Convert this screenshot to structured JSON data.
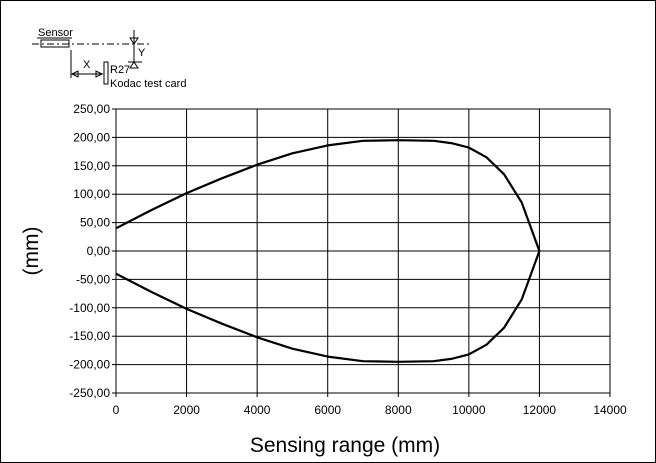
{
  "diagram": {
    "sensor_label": "Sensor",
    "x_label": "X",
    "y_label": "Y",
    "reflector_label": "R27",
    "card_label": "Kodac test card"
  },
  "chart_data": {
    "type": "line",
    "title": "",
    "xlabel": "Sensing range (mm)",
    "ylabel": "(mm)",
    "xlim": [
      0,
      14000
    ],
    "ylim": [
      -250,
      250
    ],
    "x_ticks": [
      0,
      2000,
      4000,
      6000,
      8000,
      10000,
      12000,
      14000
    ],
    "x_tick_labels": [
      "0",
      "2000",
      "4000",
      "6000",
      "8000",
      "10000",
      "12000",
      "14000"
    ],
    "y_ticks": [
      250,
      200,
      150,
      100,
      50,
      0,
      -50,
      -100,
      -150,
      -200,
      -250
    ],
    "y_tick_labels": [
      "250,00",
      "200,00",
      "150,00",
      "100,00",
      "50,00",
      "0,00",
      "-50,00",
      "-100,00",
      "-150,00",
      "-200,00",
      "-250,00"
    ],
    "grid": true,
    "series": [
      {
        "x": [
          0,
          1000,
          2000,
          3000,
          4000,
          5000,
          6000,
          7000,
          8000,
          9000,
          9500,
          10000,
          10500,
          11000,
          11500,
          12000
        ],
        "y": [
          40,
          72,
          102,
          128,
          152,
          172,
          186,
          194,
          195,
          194,
          190,
          182,
          165,
          135,
          85,
          0
        ]
      },
      {
        "x": [
          0,
          1000,
          2000,
          3000,
          4000,
          5000,
          6000,
          7000,
          8000,
          9000,
          9500,
          10000,
          10500,
          11000,
          11500,
          12000
        ],
        "y": [
          -40,
          -72,
          -102,
          -128,
          -152,
          -172,
          -186,
          -194,
          -195,
          -194,
          -190,
          -182,
          -165,
          -135,
          -85,
          0
        ]
      }
    ],
    "colors": {
      "line": "#000000",
      "grid": "#000000",
      "frame": "#000000"
    }
  }
}
